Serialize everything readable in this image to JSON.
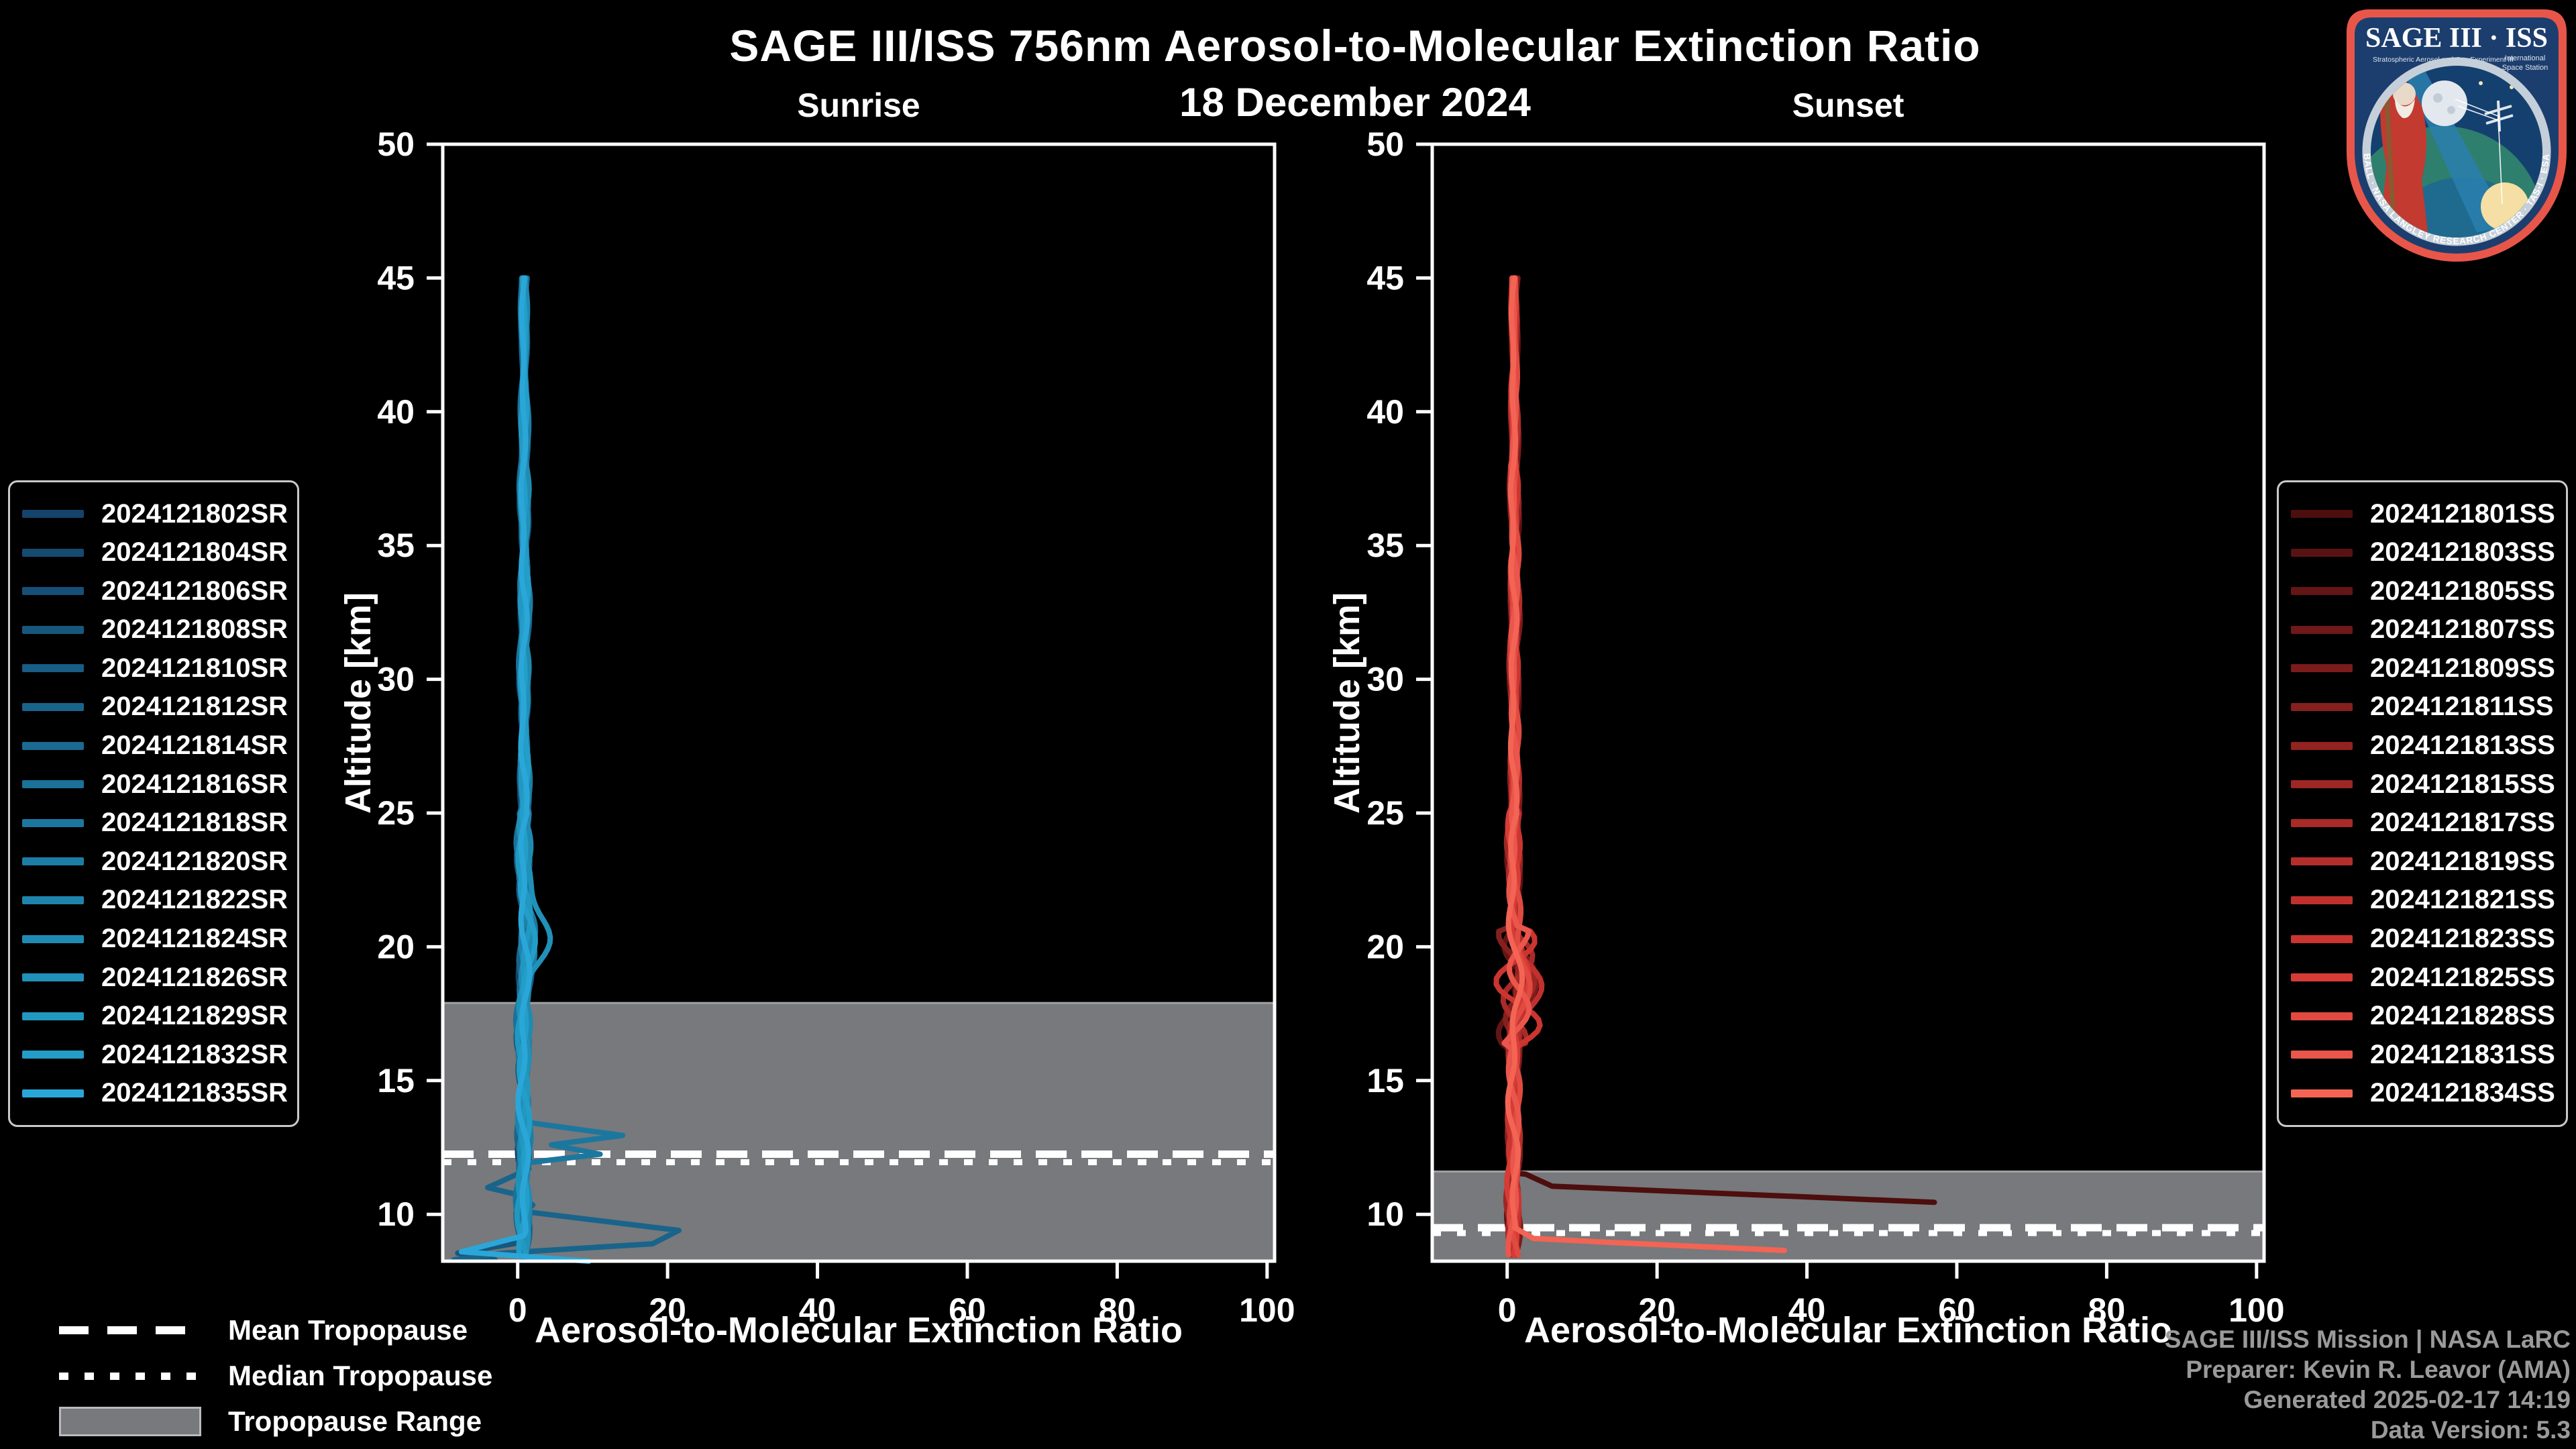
{
  "header": {
    "title": "SAGE III/ISS 756nm Aerosol-to-Molecular Extinction Ratio",
    "date": "18 December 2024"
  },
  "panels": {
    "sunrise_title": "Sunrise",
    "sunset_title": "Sunset"
  },
  "trop_legend": {
    "items": [
      {
        "label": "Mean Tropopause",
        "swatch": "dashed-line"
      },
      {
        "label": "Median Tropopause",
        "swatch": "dotted-line"
      },
      {
        "label": "Tropopause Range",
        "swatch": "gray-band"
      }
    ]
  },
  "credits": {
    "lines": [
      "SAGE III/ISS Mission | NASA LaRC",
      "Preparer: Kevin R. Leavor (AMA)",
      "Generated 2025-02-17 14:19",
      "Data Version: 5.3"
    ]
  },
  "logo": {
    "title": "SAGE III · ISS",
    "subtitle_left": "Stratospheric Aerosol and Gas Experiment III",
    "subtitle_right_1": "International",
    "subtitle_right_2": "Space Station",
    "ring_text": "BALL · NASA LANGLEY RESEARCH CENTER · TAS-I · ESA",
    "border_color": "#e8564a",
    "bg_color": "#1c3e6e"
  },
  "colors": {
    "background": "#000000",
    "frame": "#ffffff",
    "tropopause_band": "#77797c",
    "tropopause_band_edge": "#9fa1a3",
    "tropopause_lines": "#ffffff",
    "credits_text": "#9a9a9a"
  },
  "chart_data": [
    {
      "type": "line",
      "title": "Sunrise",
      "xlabel": "Aerosol-to-Molecular Extinction Ratio",
      "ylabel": "Altitude [km]",
      "xlim": [
        -10,
        101
      ],
      "ylim": [
        8.25,
        50
      ],
      "xticks": [
        0,
        20,
        40,
        60,
        80,
        100
      ],
      "yticks": [
        10,
        15,
        20,
        25,
        30,
        35,
        40,
        45,
        50
      ],
      "grid": false,
      "legend_position": "outside-left",
      "profile_top_km": 45.0,
      "profile_bottom_km": 8.3,
      "tropopause": {
        "mean_km": 12.25,
        "median_km": 11.95,
        "range_km": [
          8.25,
          17.9
        ]
      },
      "note": "16 overlapping sunrise profiles hug ratio 0-3 from 45 km downward; approximate digitized features below.",
      "render": {
        "bulge_alt_km": 20.4,
        "spread_band_km": null,
        "base_width": 0.85
      },
      "series": [
        {
          "name": "2024121802SR",
          "color": "#14436b",
          "center": 0.9,
          "bulge": 0.4
        },
        {
          "name": "2024121804SR",
          "color": "#154a71",
          "center": 1.2,
          "bulge": 0.6
        },
        {
          "name": "2024121806SR",
          "color": "#165078",
          "center": 0.7,
          "bulge": 0.3
        },
        {
          "name": "2024121808SR",
          "color": "#17577e",
          "center": 1.0,
          "bulge": 0.5,
          "anomaly": [
            [
              0.5,
              8.95
            ],
            [
              -8.0,
              8.55
            ],
            [
              -3.0,
              8.3
            ]
          ]
        },
        {
          "name": "2024121810SR",
          "color": "#185d85",
          "center": 1.3,
          "bulge": 0.8
        },
        {
          "name": "2024121812SR",
          "color": "#19648b",
          "center": 0.8,
          "bulge": 0.4,
          "anomaly": [
            [
              1.5,
              11.7
            ],
            [
              -4.0,
              11.0
            ],
            [
              0.5,
              10.7
            ],
            [
              2.0,
              10.35
            ],
            [
              1.0,
              10.1
            ],
            [
              21.5,
              9.4
            ],
            [
              18.0,
              8.9
            ],
            [
              -2.0,
              8.55
            ],
            [
              -8.5,
              8.3
            ]
          ]
        },
        {
          "name": "2024121814SR",
          "color": "#1a6a92",
          "center": 1.1,
          "bulge": 0.7
        },
        {
          "name": "2024121816SR",
          "color": "#1b7198",
          "center": 0.6,
          "bulge": 0.5
        },
        {
          "name": "2024121818SR",
          "color": "#1c779f",
          "center": 1.0,
          "bulge": 0.9,
          "anomaly": [
            [
              1.0,
              13.45
            ],
            [
              14.0,
              12.95
            ],
            [
              4.5,
              12.6
            ],
            [
              11.0,
              12.25
            ],
            [
              0.5,
              11.9
            ],
            [
              0.8,
              11.0
            ],
            [
              0.6,
              10.0
            ],
            [
              0.9,
              9.0
            ],
            [
              0.7,
              8.3
            ]
          ]
        },
        {
          "name": "2024121820SR",
          "color": "#1d7ea5",
          "center": 1.4,
          "bulge": 0.6
        },
        {
          "name": "2024121822SR",
          "color": "#1e84ac",
          "center": 0.9,
          "bulge": 0.4
        },
        {
          "name": "2024121824SR",
          "color": "#1f8bb2",
          "center": 1.2,
          "bulge": 0.8
        },
        {
          "name": "2024121826SR",
          "color": "#2091b9",
          "center": 1.0,
          "bulge": 3.6
        },
        {
          "name": "2024121829SR",
          "color": "#2198c0",
          "center": 0.8,
          "bulge": 0.5
        },
        {
          "name": "2024121832SR",
          "color": "#239ec9",
          "center": 1.1,
          "bulge": 0.7
        },
        {
          "name": "2024121835SR",
          "color": "#2aa7d8",
          "center": 0.9,
          "bulge": 0.4,
          "anomaly": [
            [
              0.8,
              9.2
            ],
            [
              -7.5,
              8.6
            ],
            [
              9.5,
              8.25
            ]
          ]
        }
      ]
    },
    {
      "type": "line",
      "title": "Sunset",
      "xlabel": "Aerosol-to-Molecular Extinction Ratio",
      "ylabel": "Altitude [km]",
      "xlim": [
        -10,
        101
      ],
      "ylim": [
        8.25,
        50
      ],
      "xticks": [
        0,
        20,
        40,
        60,
        80,
        100
      ],
      "yticks": [
        10,
        15,
        20,
        25,
        30,
        35,
        40,
        45,
        50
      ],
      "grid": false,
      "legend_position": "outside-right",
      "profile_top_km": 45.0,
      "profile_bottom_km": 8.3,
      "tropopause": {
        "mean_km": 9.5,
        "median_km": 9.3,
        "range_km": [
          8.25,
          11.6
        ]
      },
      "note": "16 overlapping sunset profiles near ratio 0-4 with crossing loops 16-21 km; two enhanced layers below 11.5 km.",
      "render": {
        "bulge_alt_km": 18.6,
        "spread_band_km": [
          16.2,
          20.8
        ],
        "base_width": 0.9
      },
      "series": [
        {
          "name": "2024121801SS",
          "color": "#4d0e0e",
          "center": 1.0,
          "bulge": 0.5,
          "anomaly": [
            [
              2.5,
              11.5
            ],
            [
              6.0,
              11.05
            ],
            [
              57.0,
              10.45
            ]
          ],
          "ends_after_anomaly": true
        },
        {
          "name": "2024121803SS",
          "color": "#581212",
          "center": 1.3,
          "bulge": 1.2
        },
        {
          "name": "2024121805SS",
          "color": "#641515",
          "center": 0.8,
          "bulge": 0.6,
          "spread": 1.2
        },
        {
          "name": "2024121807SS",
          "color": "#6f1918",
          "center": 1.1,
          "bulge": 0.8
        },
        {
          "name": "2024121809SS",
          "color": "#7b1c1b",
          "center": 1.4,
          "bulge": 2.2
        },
        {
          "name": "2024121811SS",
          "color": "#86201e",
          "center": 0.9,
          "bulge": 0.7,
          "spread": 1.8
        },
        {
          "name": "2024121813SS",
          "color": "#922321",
          "center": 1.2,
          "bulge": 0.9
        },
        {
          "name": "2024121815SS",
          "color": "#9d2724",
          "center": 0.7,
          "bulge": 2.8
        },
        {
          "name": "2024121817SS",
          "color": "#a92a27",
          "center": 1.0,
          "bulge": 0.6,
          "spread": 2.2
        },
        {
          "name": "2024121819SS",
          "color": "#b42e2a",
          "center": 1.3,
          "bulge": 0.8
        },
        {
          "name": "2024121821SS",
          "color": "#c0312d",
          "center": 0.9,
          "bulge": 3.2
        },
        {
          "name": "2024121823SS",
          "color": "#cb3530",
          "center": 1.1,
          "bulge": 0.7,
          "spread": 2.6
        },
        {
          "name": "2024121825SS",
          "color": "#d63c35",
          "center": 0.8,
          "bulge": 2.4
        },
        {
          "name": "2024121828SS",
          "color": "#e04a40",
          "center": 1.2,
          "bulge": 1.8
        },
        {
          "name": "2024121831SS",
          "color": "#ea564b",
          "center": 1.0,
          "bulge": 0.9,
          "spread": 1.5
        },
        {
          "name": "2024121834SS",
          "color": "#f36454",
          "center": 0.9,
          "bulge": 0.5,
          "anomaly": [
            [
              1.0,
              9.5
            ],
            [
              3.5,
              9.1
            ],
            [
              14.0,
              8.95
            ],
            [
              37.0,
              8.65
            ]
          ],
          "ends_after_anomaly": true
        }
      ]
    }
  ]
}
